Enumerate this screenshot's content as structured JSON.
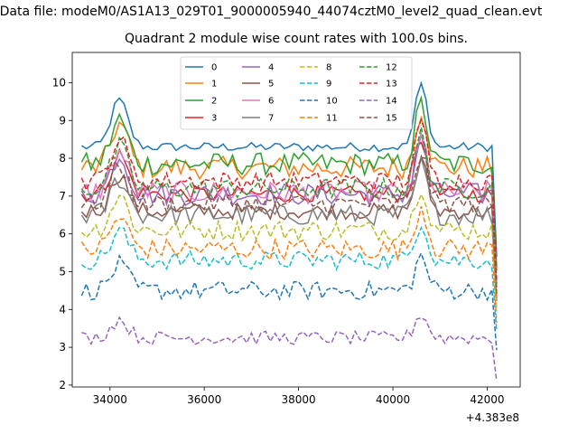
{
  "suptitle": "Data file: modeM0/AS1A13_029T01_9000005940_44074cztM0_level2_quad_clean.evt",
  "chart_data": {
    "type": "line",
    "title": "Quadrant 2 module wise count rates with 100.0s bins.",
    "xlabel": "",
    "ylabel": "",
    "x_offset_label": "+4.383e8",
    "xlim": [
      33200,
      42700
    ],
    "ylim": [
      1.95,
      10.8
    ],
    "xticks": [
      34000,
      36000,
      38000,
      40000,
      42000
    ],
    "yticks": [
      2,
      3,
      4,
      5,
      6,
      7,
      8,
      9,
      10
    ],
    "x_start": 33400,
    "x_end": 42200,
    "x_step": 100,
    "grid": false,
    "legend_position": "top-center",
    "series": [
      {
        "name": "0",
        "color": "#1f77b4",
        "style": "solid",
        "base": 8.3,
        "noise": 0.12
      },
      {
        "name": "1",
        "color": "#ff7f0e",
        "style": "solid",
        "base": 7.75,
        "noise": 0.3
      },
      {
        "name": "2",
        "color": "#2ca02c",
        "style": "solid",
        "base": 7.85,
        "noise": 0.3
      },
      {
        "name": "3",
        "color": "#d62728",
        "style": "solid",
        "base": 7.05,
        "noise": 0.22
      },
      {
        "name": "4",
        "color": "#9467bd",
        "style": "solid",
        "base": 7.05,
        "noise": 0.3
      },
      {
        "name": "5",
        "color": "#8c564b",
        "style": "solid",
        "base": 6.6,
        "noise": 0.22
      },
      {
        "name": "6",
        "color": "#e377c2",
        "style": "solid",
        "base": 7.1,
        "noise": 0.3
      },
      {
        "name": "7",
        "color": "#7f7f7f",
        "style": "solid",
        "base": 6.5,
        "noise": 0.28
      },
      {
        "name": "8",
        "color": "#bcbd22",
        "style": "dashed",
        "base": 6.1,
        "noise": 0.28
      },
      {
        "name": "9",
        "color": "#17becf",
        "style": "dashed",
        "base": 5.3,
        "noise": 0.25
      },
      {
        "name": "10",
        "color": "#1f77b4",
        "style": "dashed",
        "base": 4.5,
        "noise": 0.25
      },
      {
        "name": "11",
        "color": "#ff7f0e",
        "style": "dashed",
        "base": 5.6,
        "noise": 0.28
      },
      {
        "name": "12",
        "color": "#2ca02c",
        "style": "dashed",
        "base": 7.2,
        "noise": 0.28
      },
      {
        "name": "13",
        "color": "#d62728",
        "style": "dashed",
        "base": 7.4,
        "noise": 0.25
      },
      {
        "name": "14",
        "color": "#9467bd",
        "style": "dashed",
        "base": 3.25,
        "noise": 0.18
      },
      {
        "name": "15",
        "color": "#8c564b",
        "style": "dashed",
        "base": 6.8,
        "noise": 0.25
      }
    ]
  }
}
